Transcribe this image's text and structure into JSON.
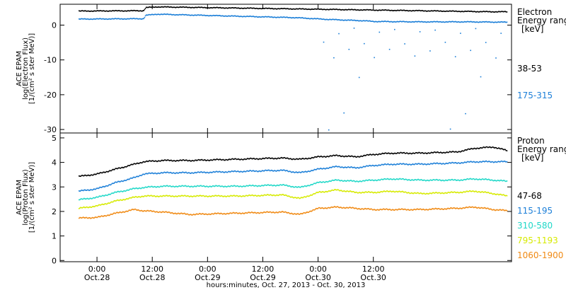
{
  "chart_data": [
    {
      "type": "scatter",
      "panel": "electron",
      "ylabel": [
        "ACE EPAM",
        "log(Electron Flux)",
        "[1/(cm² s ster MeV)]"
      ],
      "ylim": [
        -31,
        6
      ],
      "yticks": [
        0,
        -10,
        -20,
        -30
      ],
      "legend_title": [
        "Electron",
        "Energy ranges",
        "[keV]"
      ],
      "series": [
        {
          "name": "38-53",
          "color": "#000000",
          "x": [
            -4,
            10,
            10.5,
            13,
            85,
            89
          ],
          "y": [
            4.2,
            4.3,
            5.2,
            5.4,
            4.0,
            4.0
          ]
        },
        {
          "name": "175-315",
          "color": "#1c7fd8",
          "x": [
            -4,
            10,
            10.5,
            13,
            43,
            50,
            58,
            60,
            70,
            80,
            89
          ],
          "y": [
            1.9,
            2.0,
            3.0,
            3.3,
            2.3,
            1.8,
            1.4,
            1.2,
            1.1,
            1.1,
            1.0
          ]
        }
      ]
    },
    {
      "type": "scatter",
      "panel": "proton",
      "ylabel": [
        "ACE EPAM",
        "log(Proton Flux)",
        "[1/(cm² s ster MeV)]"
      ],
      "ylim": [
        -0.05,
        5.2
      ],
      "yticks": [
        0,
        1,
        2,
        3,
        4,
        5
      ],
      "legend_title": [
        "Proton",
        "Energy ranges",
        "[keV]"
      ],
      "series": [
        {
          "name": "47-68",
          "color": "#000000",
          "x": [
            -4,
            0,
            4,
            6,
            8,
            10,
            14,
            20,
            30,
            40,
            44,
            48,
            52,
            56,
            60,
            64,
            70,
            78,
            82,
            86,
            89
          ],
          "y": [
            3.45,
            3.55,
            3.75,
            3.85,
            3.95,
            4.05,
            4.1,
            4.1,
            4.15,
            4.2,
            4.15,
            4.25,
            4.3,
            4.25,
            4.35,
            4.4,
            4.4,
            4.45,
            4.6,
            4.65,
            4.5
          ]
        },
        {
          "name": "115-195",
          "color": "#1c7fd8",
          "x": [
            -4,
            0,
            4,
            8,
            10,
            14,
            20,
            30,
            40,
            44,
            48,
            52,
            56,
            60,
            64,
            70,
            78,
            82,
            86,
            89
          ],
          "y": [
            2.85,
            2.95,
            3.2,
            3.4,
            3.55,
            3.6,
            3.6,
            3.65,
            3.7,
            3.6,
            3.75,
            3.85,
            3.8,
            3.9,
            3.95,
            3.95,
            4.0,
            4.05,
            4.05,
            4.05
          ]
        },
        {
          "name": "310-580",
          "color": "#20d8c8",
          "x": [
            -4,
            0,
            4,
            8,
            10,
            14,
            20,
            30,
            40,
            44,
            48,
            52,
            56,
            60,
            64,
            70,
            78,
            82,
            86,
            89
          ],
          "y": [
            2.5,
            2.6,
            2.8,
            2.95,
            3.0,
            3.05,
            3.05,
            3.05,
            3.1,
            3.0,
            3.2,
            3.3,
            3.25,
            3.3,
            3.35,
            3.3,
            3.3,
            3.35,
            3.3,
            3.25
          ]
        },
        {
          "name": "795-1193",
          "color": "#d6ea00",
          "x": [
            -4,
            0,
            4,
            8,
            10,
            14,
            20,
            30,
            40,
            44,
            48,
            52,
            56,
            60,
            64,
            70,
            78,
            82,
            86,
            89
          ],
          "y": [
            2.15,
            2.25,
            2.45,
            2.6,
            2.65,
            2.65,
            2.65,
            2.65,
            2.7,
            2.55,
            2.8,
            2.9,
            2.8,
            2.8,
            2.85,
            2.75,
            2.8,
            2.85,
            2.75,
            2.65
          ]
        },
        {
          "name": "1060-1900",
          "color": "#f08a14",
          "x": [
            -4,
            0,
            4,
            8,
            10,
            14,
            20,
            30,
            40,
            44,
            48,
            52,
            56,
            60,
            64,
            70,
            78,
            82,
            86,
            89
          ],
          "y": [
            1.75,
            1.78,
            1.95,
            2.1,
            2.05,
            2.0,
            1.9,
            1.95,
            2.0,
            1.9,
            2.15,
            2.2,
            2.15,
            2.1,
            2.1,
            2.1,
            2.15,
            2.2,
            2.1,
            2.05
          ]
        }
      ]
    }
  ],
  "x_axis": {
    "ticks": [
      {
        "time": "0:00",
        "date": "Oct.28",
        "x": 0
      },
      {
        "time": "12:00",
        "date": "Oct.28",
        "x": 12
      },
      {
        "time": "0:00",
        "date": "Oct.29",
        "x": 24
      },
      {
        "time": "12:00",
        "date": "Oct.29",
        "x": 36
      },
      {
        "time": "0:00",
        "date": "Oct.30",
        "x": 48
      },
      {
        "time": "12:00",
        "date": "Oct.30",
        "x": 60
      }
    ],
    "xlim": [
      -8,
      90
    ],
    "title": "hours:minutes, Oct. 27, 2013 - Oct. 30, 2013"
  }
}
